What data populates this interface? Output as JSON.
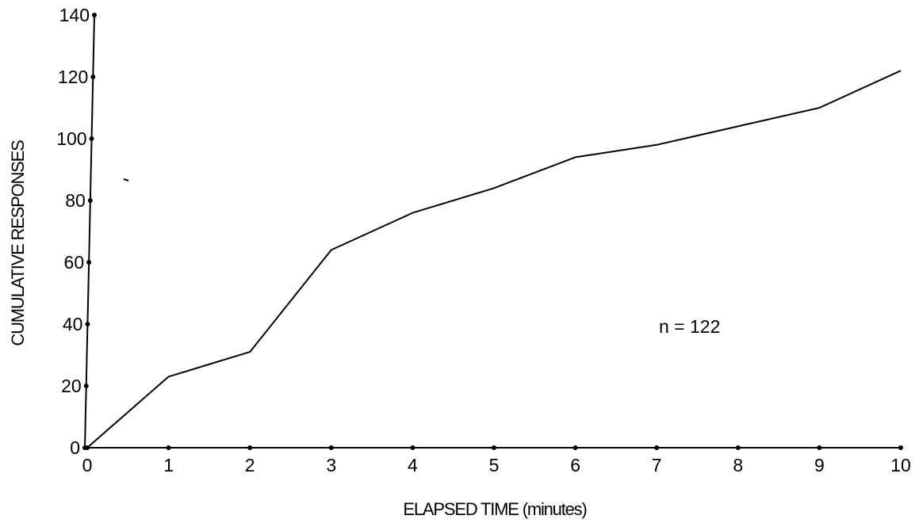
{
  "chart_data": {
    "type": "line",
    "xlabel": "ELAPSED TIME (minutes)",
    "ylabel": "CUMULATIVE RESPONSES",
    "xlim": [
      0,
      10
    ],
    "ylim": [
      0,
      140
    ],
    "x_ticks": [
      "0",
      "1",
      "2",
      "3",
      "4",
      "5",
      "6",
      "7",
      "8",
      "9",
      "10"
    ],
    "y_ticks": [
      "0",
      "20",
      "40",
      "60",
      "80",
      "100",
      "120",
      "140"
    ],
    "annotation": "n = 122",
    "grid": false,
    "series": [
      {
        "x": [
          0,
          1,
          2,
          3,
          4,
          5,
          6,
          7,
          8,
          9,
          10
        ],
        "y": [
          0,
          23,
          31,
          64,
          76,
          84,
          94,
          98,
          104,
          110,
          122
        ]
      }
    ],
    "colors": {
      "line": "#000000",
      "axis": "#000000",
      "background": "#ffffff"
    }
  }
}
